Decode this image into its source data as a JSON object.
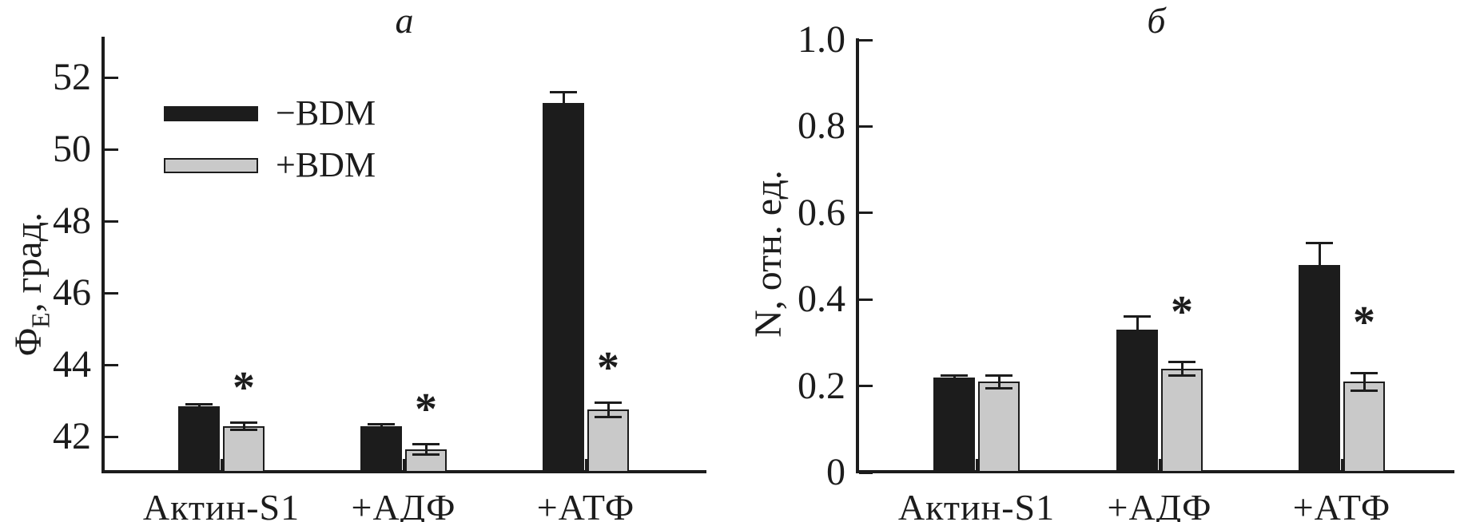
{
  "chart_data": [
    {
      "type": "bar",
      "title": "a",
      "ylabel_main": "Φ",
      "ylabel_sub": "E",
      "ylabel_rest": ", град.",
      "ylim": [
        41,
        53.1
      ],
      "ytick_values": [
        42,
        44,
        46,
        48,
        50,
        52
      ],
      "ytick_labels": [
        "42",
        "44",
        "46",
        "48",
        "50",
        "52"
      ],
      "categories": [
        "Актин-S1",
        "+АДФ",
        "+АТФ"
      ],
      "series": [
        {
          "name": "−BDM",
          "color": "#1c1c1c",
          "values": [
            42.85,
            42.3,
            51.3
          ],
          "errors": [
            0.05,
            0.05,
            0.3
          ]
        },
        {
          "name": "+BDM",
          "color": "#c9c9c9",
          "values": [
            42.3,
            41.65,
            42.75
          ],
          "errors": [
            0.1,
            0.15,
            0.2
          ]
        }
      ],
      "significance_marker": "*",
      "significance": [
        true,
        true,
        true
      ],
      "legend_position": "upper-left",
      "grid": "off"
    },
    {
      "type": "bar",
      "title": "б",
      "ylabel_main": "N",
      "ylabel_sub": "",
      "ylabel_rest": ", отн. ед.",
      "ylim": [
        0,
        1.0
      ],
      "ytick_values": [
        0,
        0.2,
        0.4,
        0.6,
        0.8,
        1.0
      ],
      "ytick_labels": [
        "0",
        "0.2",
        "0.4",
        "0.6",
        "0.8",
        "1.0"
      ],
      "categories": [
        "Актин-S1",
        "+АДФ",
        "+АТФ"
      ],
      "series": [
        {
          "name": "−BDM",
          "color": "#1c1c1c",
          "values": [
            0.22,
            0.33,
            0.48
          ],
          "errors": [
            0.005,
            0.03,
            0.05
          ]
        },
        {
          "name": "+BDM",
          "color": "#c9c9c9",
          "values": [
            0.21,
            0.24,
            0.21
          ],
          "errors": [
            0.015,
            0.015,
            0.02
          ]
        }
      ],
      "significance_marker": "*",
      "significance": [
        false,
        true,
        true
      ],
      "legend_position": "none",
      "grid": "off"
    }
  ]
}
